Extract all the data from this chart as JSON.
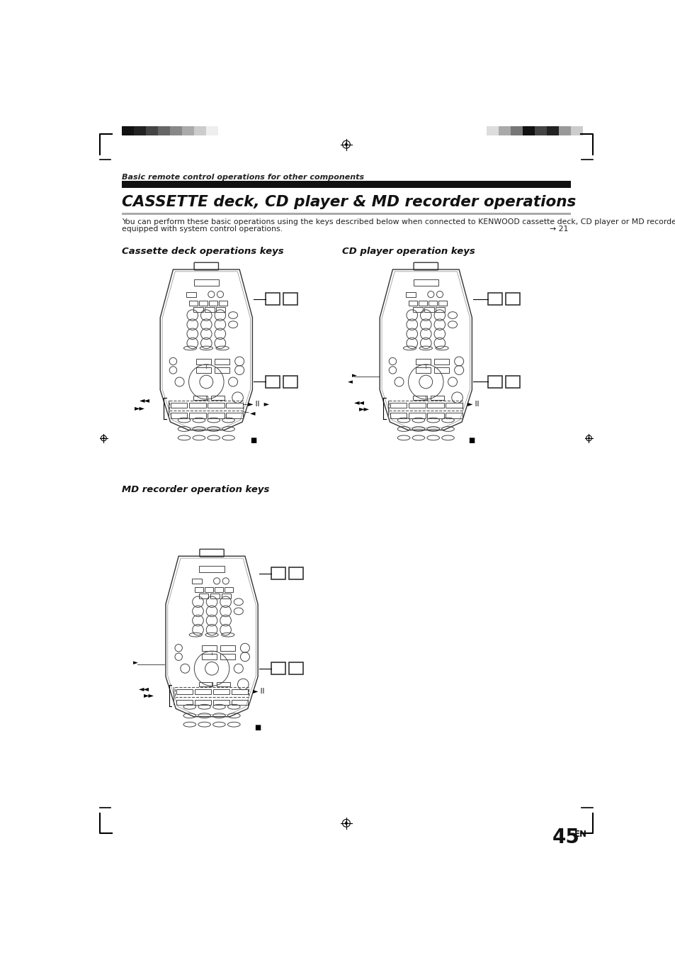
{
  "page_bg": "#ffffff",
  "header_bar_left": [
    "#111111",
    "#222222",
    "#444444",
    "#666666",
    "#888888",
    "#aaaaaa",
    "#cccccc",
    "#eeeeee"
  ],
  "header_bar_right": [
    "#dddddd",
    "#aaaaaa",
    "#777777",
    "#111111",
    "#444444",
    "#222222",
    "#999999",
    "#cccccc"
  ],
  "section_label": "Basic remote control operations for other components",
  "main_title": "CASSETTE deck, CD player & MD recorder operations",
  "body_line1": "You can perform these basic operations using the keys described below when connected to KENWOOD cassette deck, CD player or MD recorder",
  "body_line2": "equipped with system control operations.",
  "page_ref": "→ 21",
  "subsection1": "Cassette deck operations keys",
  "subsection2": "CD player operation keys",
  "subsection3": "MD recorder operation keys",
  "page_number": "45",
  "page_suffix": "EN"
}
